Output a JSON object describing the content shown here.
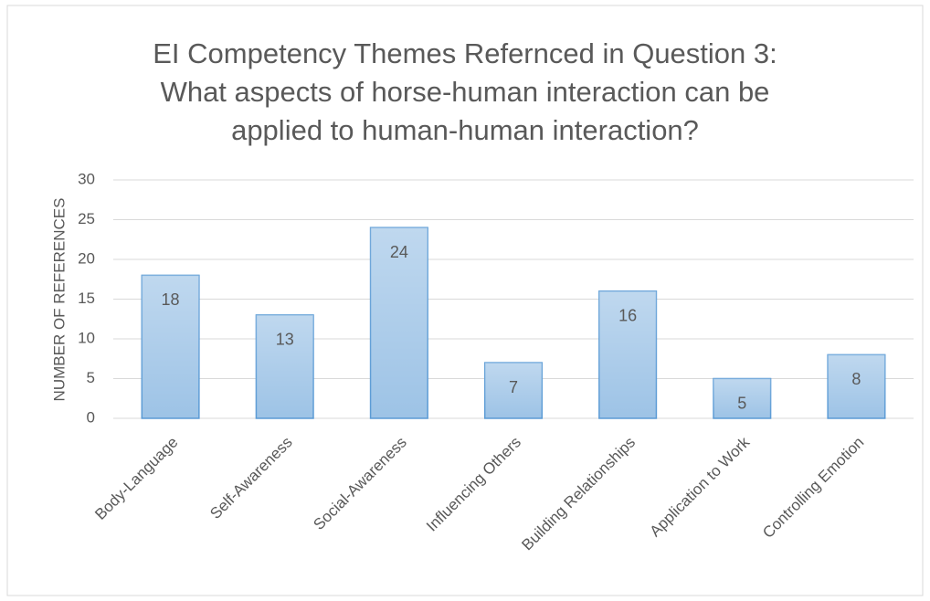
{
  "chart_data": {
    "type": "bar",
    "title": "EI Competency Themes Refernced in Question 3: What aspects of horse-human interaction can be applied to human-human interaction?",
    "y_axis_label": "NUMBER OF REFERENCES",
    "categories": [
      "Body-Language",
      "Self-Awareness",
      "Social-Awareness",
      "Influencing Others",
      "Building Relationships",
      "Application to Work",
      "Controlling Emotion"
    ],
    "values": [
      18,
      13,
      24,
      7,
      16,
      5,
      8
    ],
    "color": "#9dc3e6",
    "edge_color": "#5b9bd5",
    "ylim": [
      0,
      30
    ],
    "yticks": [
      0,
      5,
      10,
      15,
      20,
      25,
      30
    ],
    "grid": true
  }
}
